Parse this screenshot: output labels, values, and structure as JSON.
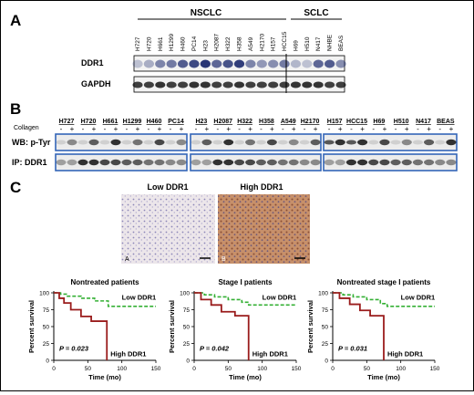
{
  "panelA": {
    "letter": "A",
    "group_labels": [
      "NSCLC",
      "SCLC"
    ],
    "lanes": [
      "H727",
      "H720",
      "H661",
      "H1299",
      "H460",
      "PC14",
      "H23",
      "H2087",
      "H322",
      "H358",
      "A549",
      "H2170",
      "H157",
      "HCC15",
      "H69",
      "H510",
      "N417",
      "NHBE",
      "BEAS"
    ],
    "row_labels": [
      "DDR1",
      "GAPDH"
    ],
    "ddr1_intensity": [
      0.25,
      0.35,
      0.55,
      0.6,
      0.75,
      0.85,
      0.95,
      0.7,
      0.8,
      0.9,
      0.55,
      0.45,
      0.5,
      0.6,
      0.3,
      0.25,
      0.7,
      0.75,
      0.5
    ],
    "gapdh_intensity": [
      0.8,
      0.8,
      0.85,
      0.8,
      0.8,
      0.85,
      0.85,
      0.8,
      0.8,
      0.85,
      0.8,
      0.8,
      0.8,
      0.8,
      0.85,
      0.85,
      0.85,
      0.8,
      0.8
    ]
  },
  "panelB": {
    "letter": "B",
    "collagen_label": "Collagen",
    "lanes": [
      "H727",
      "H720",
      "H661",
      "H1299",
      "H460",
      "PC14",
      "H23",
      "H2087",
      "H322",
      "H358",
      "A549",
      "H2170",
      "H157",
      "HCC15",
      "H69",
      "H510",
      "N417",
      "BEAS"
    ],
    "minus": "-",
    "plus": "+",
    "row_labels": [
      "WB: p-Tyr",
      "IP: DDR1"
    ]
  },
  "panelC": {
    "letter": "C",
    "image_labels": [
      "Low DDR1",
      "High DDR1"
    ],
    "image_letters": [
      "A",
      "B"
    ],
    "charts": [
      {
        "title": "Nontreated patients",
        "pvalue": "P = 0.023"
      },
      {
        "title": "Stage I patients",
        "pvalue": "P = 0.042"
      },
      {
        "title": "Nontreated stage I patients",
        "pvalue": "P = 0.031"
      }
    ],
    "colors": {
      "low": "#35b035",
      "high": "#9a1c1c"
    }
  },
  "chart_data": [
    {
      "type": "line",
      "title": "Nontreated patients",
      "xlabel": "Time (mo)",
      "ylabel": "Percent survival",
      "xlim": [
        0,
        150
      ],
      "ylim": [
        0,
        100
      ],
      "xticks": [
        0,
        50,
        100,
        150
      ],
      "yticks": [
        0,
        25,
        50,
        75,
        100
      ],
      "series": [
        {
          "name": "Low  DDR1",
          "x": [
            0,
            10,
            20,
            40,
            60,
            80,
            150
          ],
          "y": [
            100,
            98,
            95,
            92,
            88,
            80,
            80
          ]
        },
        {
          "name": "High  DDR1",
          "x": [
            0,
            8,
            15,
            25,
            40,
            55,
            78,
            78
          ],
          "y": [
            100,
            92,
            85,
            75,
            65,
            58,
            58,
            0
          ]
        }
      ]
    },
    {
      "type": "line",
      "title": "Stage I patients",
      "xlabel": "Time (mo)",
      "ylabel": "Percent survival",
      "xlim": [
        0,
        150
      ],
      "ylim": [
        0,
        100
      ],
      "xticks": [
        0,
        50,
        100,
        150
      ],
      "yticks": [
        0,
        25,
        50,
        75,
        100
      ],
      "series": [
        {
          "name": "Low  DDR1",
          "x": [
            0,
            15,
            30,
            50,
            70,
            80,
            150
          ],
          "y": [
            100,
            97,
            94,
            90,
            86,
            82,
            82
          ]
        },
        {
          "name": "High  DDR1",
          "x": [
            0,
            10,
            25,
            40,
            60,
            80,
            80
          ],
          "y": [
            100,
            90,
            82,
            72,
            66,
            66,
            0
          ]
        }
      ]
    },
    {
      "type": "line",
      "title": "Nontreated stage I patients",
      "xlabel": "Time (mo)",
      "ylabel": "Percent survival",
      "xlim": [
        0,
        150
      ],
      "ylim": [
        0,
        100
      ],
      "xticks": [
        0,
        50,
        100,
        150
      ],
      "yticks": [
        0,
        25,
        50,
        75,
        100
      ],
      "series": [
        {
          "name": "Low  DDR1",
          "x": [
            0,
            15,
            30,
            50,
            70,
            80,
            150
          ],
          "y": [
            100,
            97,
            94,
            90,
            84,
            80,
            80
          ]
        },
        {
          "name": "High  DDR1",
          "x": [
            0,
            10,
            25,
            40,
            55,
            75,
            75
          ],
          "y": [
            100,
            92,
            83,
            74,
            66,
            66,
            0
          ]
        }
      ]
    }
  ]
}
